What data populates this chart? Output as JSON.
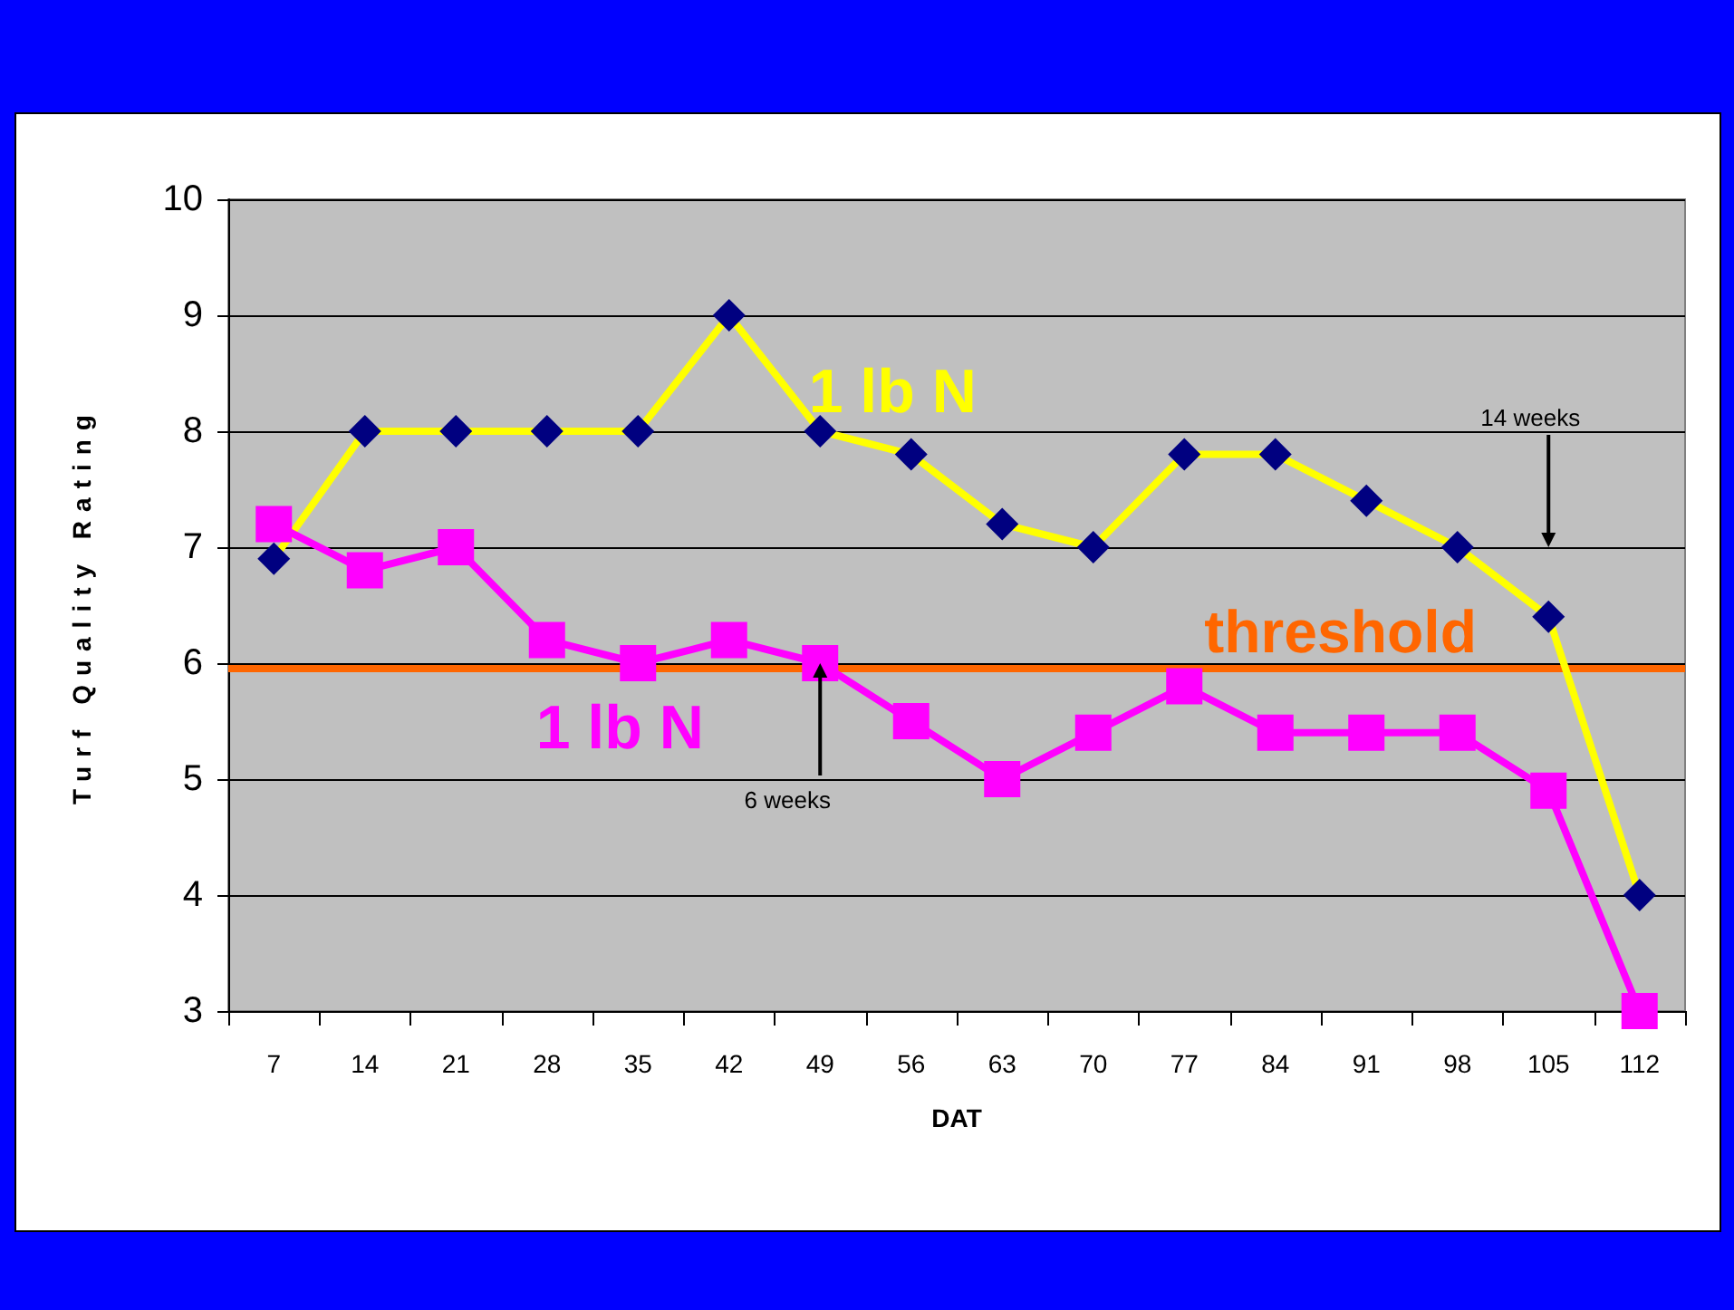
{
  "chart_data": {
    "type": "line",
    "xlabel": "DAT",
    "ylabel": "Turf Quality Rating",
    "categories": [
      "7",
      "14",
      "21",
      "28",
      "35",
      "42",
      "49",
      "56",
      "63",
      "70",
      "77",
      "84",
      "91",
      "98",
      "105",
      "112"
    ],
    "series": [
      {
        "name": "1 lb N",
        "color": "#ffff00",
        "marker": "diamond",
        "values": [
          6.9,
          8,
          8,
          8,
          8,
          9,
          8,
          7.8,
          7.2,
          7,
          7.8,
          7.8,
          7.4,
          7,
          6.4,
          4
        ]
      },
      {
        "name": "1 lb N",
        "color": "#ff00ff",
        "marker": "square",
        "values": [
          7.2,
          6.8,
          7,
          6.2,
          6,
          6.2,
          6,
          5.5,
          5,
          5.4,
          5.8,
          5.4,
          5.4,
          5.4,
          4.9,
          3
        ]
      }
    ],
    "ylim": [
      3,
      10
    ],
    "yticks": [
      3,
      4,
      5,
      6,
      7,
      8,
      9,
      10
    ],
    "grid": "y",
    "legend": false,
    "line_style": "solid",
    "ref_lines": [
      {
        "axis": "y",
        "value": 5.95,
        "label": "threshold",
        "color": "#ff6600"
      }
    ],
    "annotations": [
      "14 weeks",
      {
        "text": "6 weeks",
        "x": "49",
        "y": 6
      }
    ]
  }
}
